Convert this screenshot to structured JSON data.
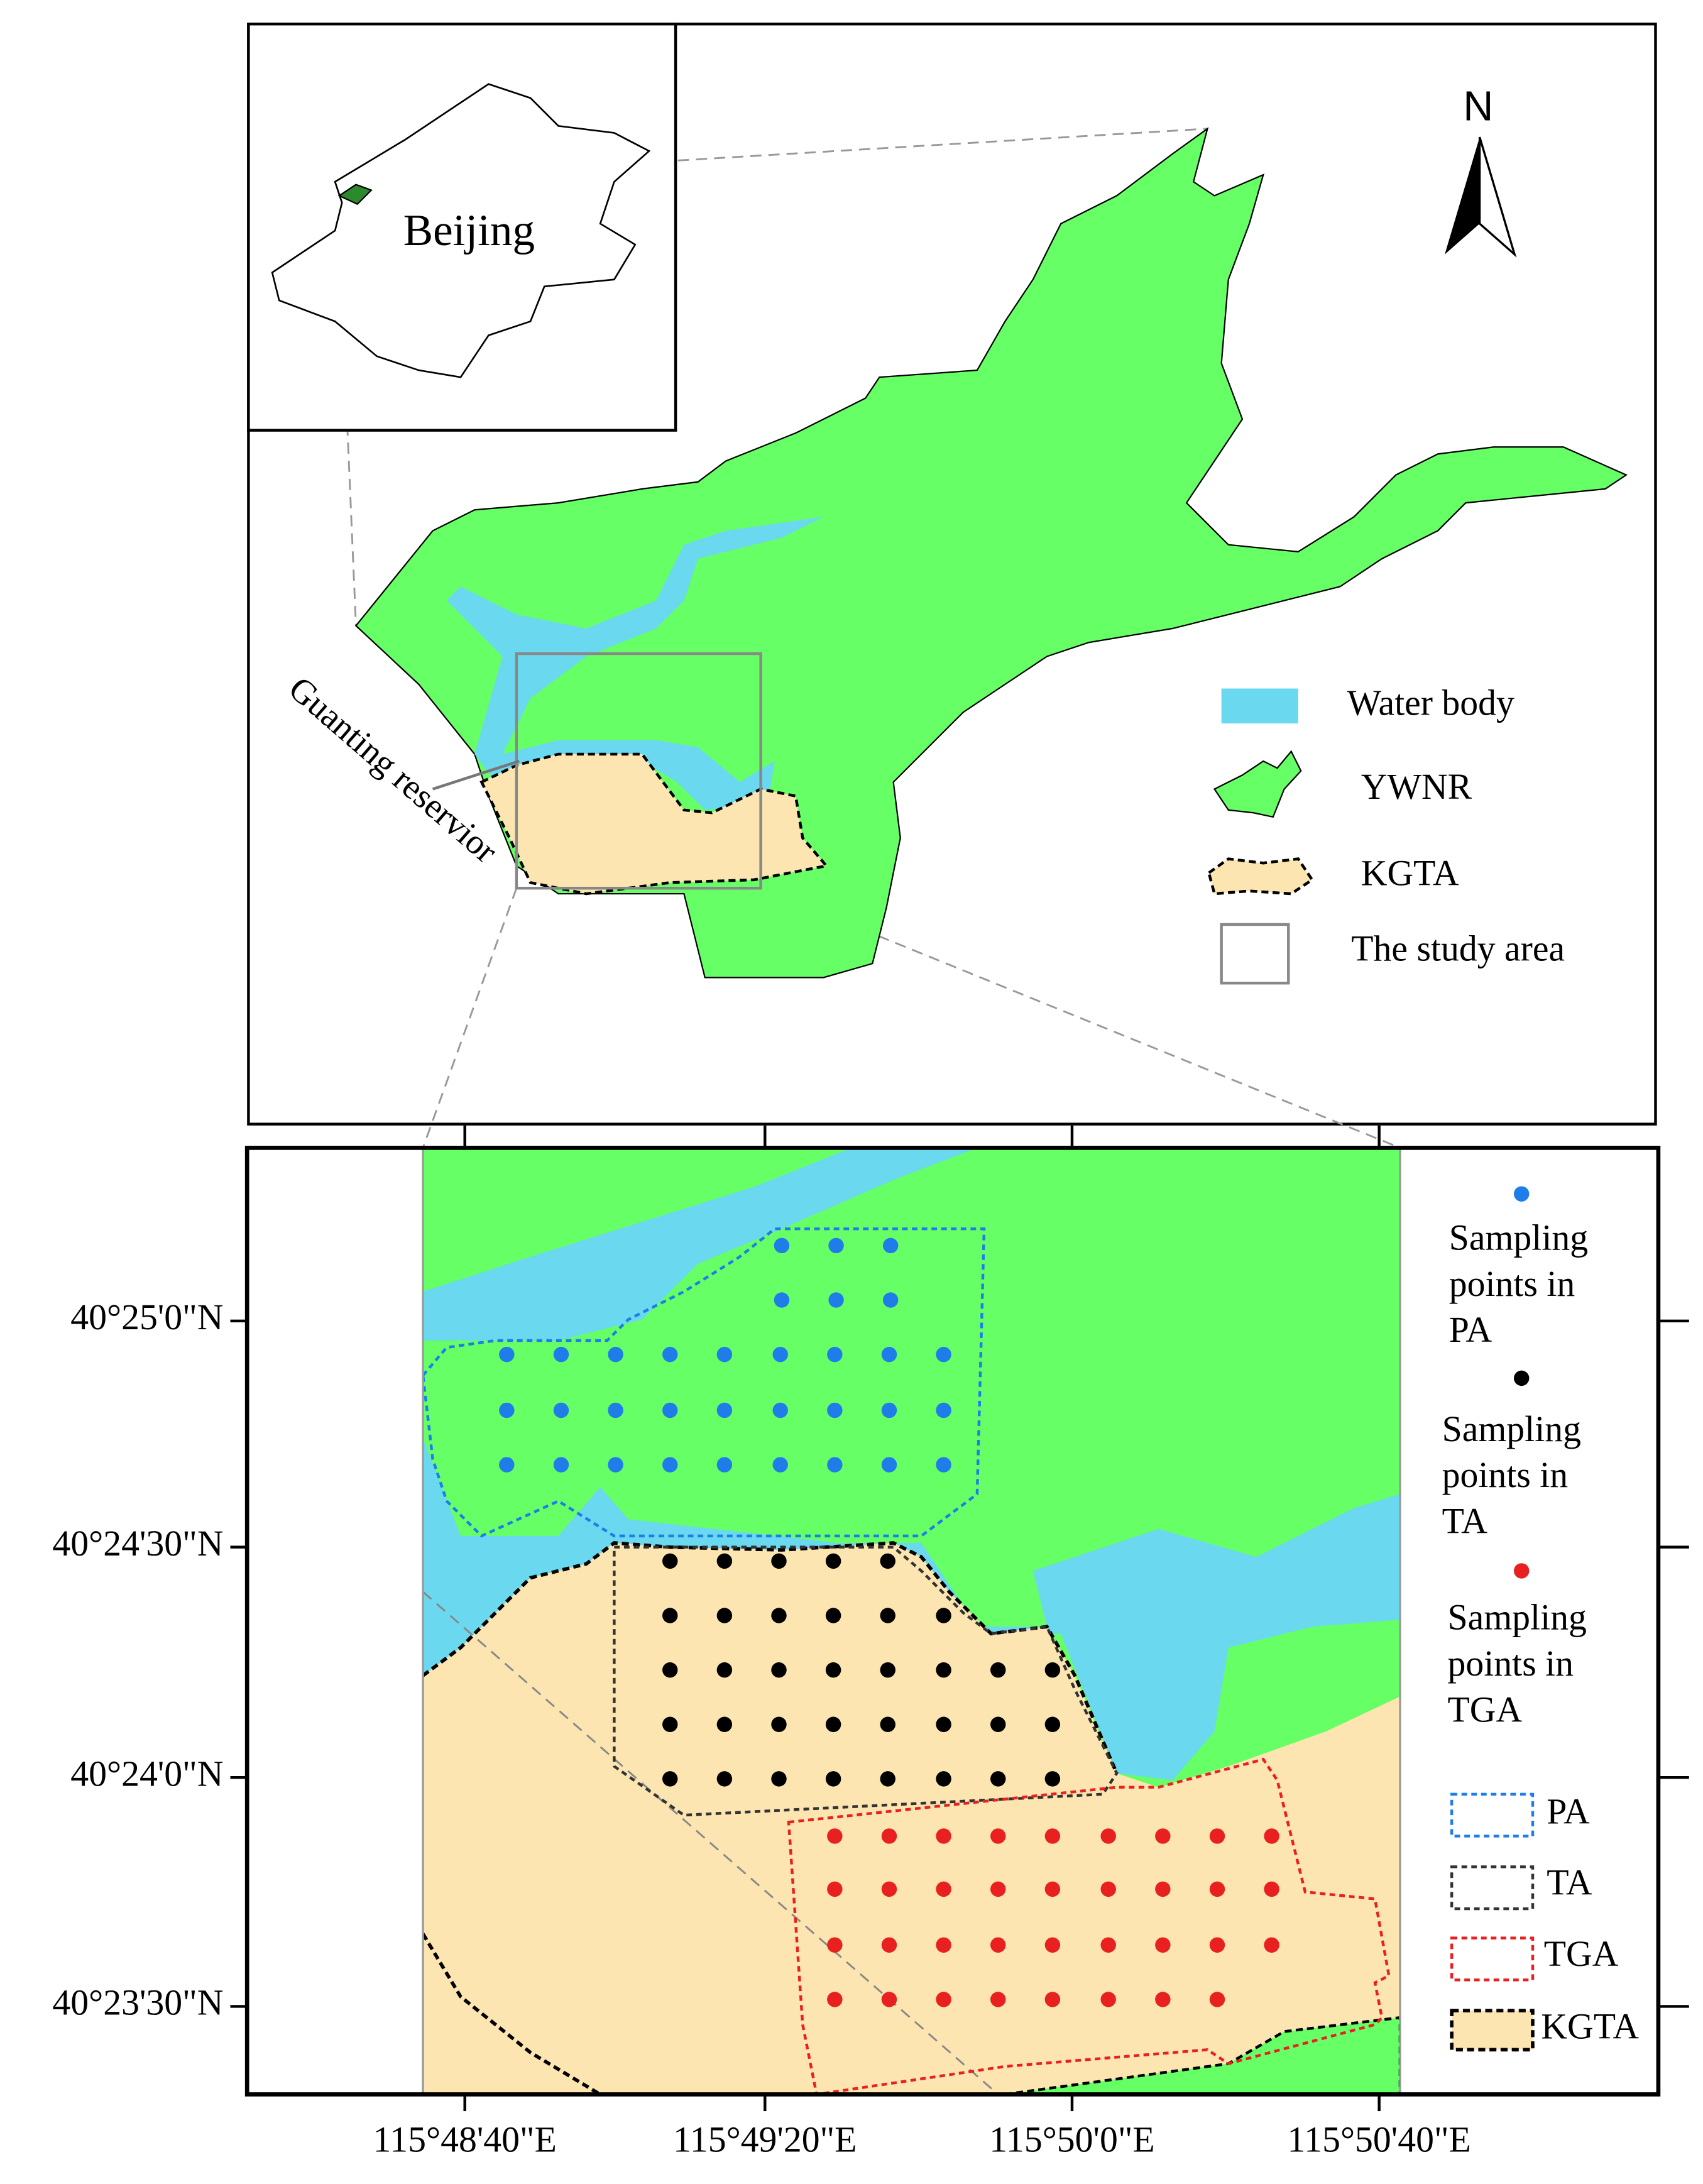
{
  "inset": {
    "label": "Beijing"
  },
  "north_arrow": {
    "label": "N"
  },
  "annotation": "Guanting reservior",
  "overview_legend": [
    "Water body",
    "YWNR",
    "KGTA",
    "The study area"
  ],
  "detail_legend": {
    "points": [
      "Sampling points in PA",
      "Sampling points in TA",
      "Sampling points in TGA"
    ],
    "areas": [
      "PA",
      "TA",
      "TGA",
      "KGTA"
    ]
  },
  "axes": {
    "longitude_labels": [
      "115°48'40\"E",
      "115°49'20\"E",
      "115°50'0\"E",
      "115°50'40\"E"
    ],
    "latitude_labels": [
      "40°25'0\"N",
      "40°24'30\"N",
      "40°24'0\"N",
      "40°23'30\"N"
    ]
  }
}
